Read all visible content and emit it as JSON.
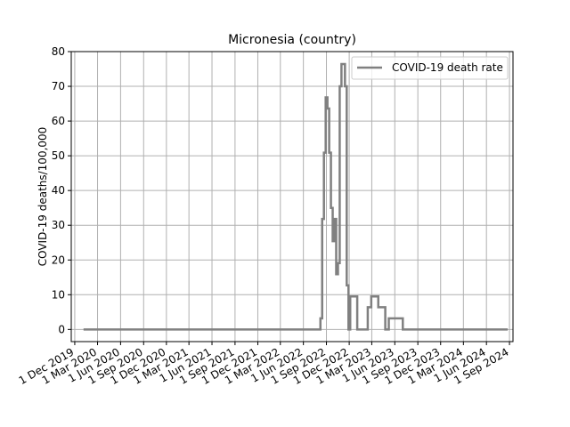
{
  "chart_data": {
    "type": "line",
    "title": "Micronesia (country)",
    "xlabel": "",
    "ylabel": "COVID-19 deaths/100,000",
    "ylim": [
      -3.5,
      80
    ],
    "yticks": [
      0,
      10,
      20,
      30,
      40,
      50,
      60,
      70,
      80
    ],
    "xlim": [
      "2019-11-17",
      "2024-09-15"
    ],
    "xticks": [
      "2019-12-01",
      "2020-03-01",
      "2020-06-01",
      "2020-09-01",
      "2020-12-01",
      "2021-03-01",
      "2021-06-01",
      "2021-09-01",
      "2021-12-01",
      "2022-03-01",
      "2022-06-01",
      "2022-09-01",
      "2022-12-01",
      "2023-03-01",
      "2023-06-01",
      "2023-09-01",
      "2023-12-01",
      "2024-03-01",
      "2024-06-01",
      "2024-09-01"
    ],
    "xtick_labels": [
      "1 Dec 2019",
      "1 Mar 2020",
      "1 Jun 2020",
      "1 Sep 2020",
      "1 Dec 2020",
      "1 Mar 2021",
      "1 Jun 2021",
      "1 Sep 2021",
      "1 Dec 2021",
      "1 Mar 2022",
      "1 Jun 2022",
      "1 Sep 2022",
      "1 Dec 2022",
      "1 Mar 2023",
      "1 Jun 2023",
      "1 Sep 2023",
      "1 Dec 2023",
      "1 Mar 2024",
      "1 Jun 2024",
      "1 Sep 2024"
    ],
    "grid": true,
    "legend_position": "top-right",
    "series": [
      {
        "name": "COVID-19 death rate",
        "color": "#808080",
        "step": true,
        "points": [
          [
            "2020-01-05",
            0
          ],
          [
            "2022-08-01",
            0
          ],
          [
            "2022-08-08",
            3.2
          ],
          [
            "2022-08-15",
            31.8
          ],
          [
            "2022-08-22",
            50.9
          ],
          [
            "2022-08-29",
            66.8
          ],
          [
            "2022-09-05",
            63.6
          ],
          [
            "2022-09-12",
            50.9
          ],
          [
            "2022-09-19",
            35.0
          ],
          [
            "2022-09-26",
            25.4
          ],
          [
            "2022-10-03",
            31.8
          ],
          [
            "2022-10-10",
            15.9
          ],
          [
            "2022-10-17",
            19.1
          ],
          [
            "2022-10-24",
            70.0
          ],
          [
            "2022-10-31",
            76.4
          ],
          [
            "2022-11-14",
            70.0
          ],
          [
            "2022-11-21",
            12.7
          ],
          [
            "2022-11-28",
            0
          ],
          [
            "2022-12-05",
            9.5
          ],
          [
            "2023-01-02",
            0
          ],
          [
            "2023-02-13",
            6.4
          ],
          [
            "2023-02-27",
            9.5
          ],
          [
            "2023-03-27",
            6.4
          ],
          [
            "2023-04-24",
            0
          ],
          [
            "2023-05-08",
            3.2
          ],
          [
            "2023-07-03",
            0
          ],
          [
            "2024-08-25",
            0
          ]
        ]
      }
    ]
  }
}
